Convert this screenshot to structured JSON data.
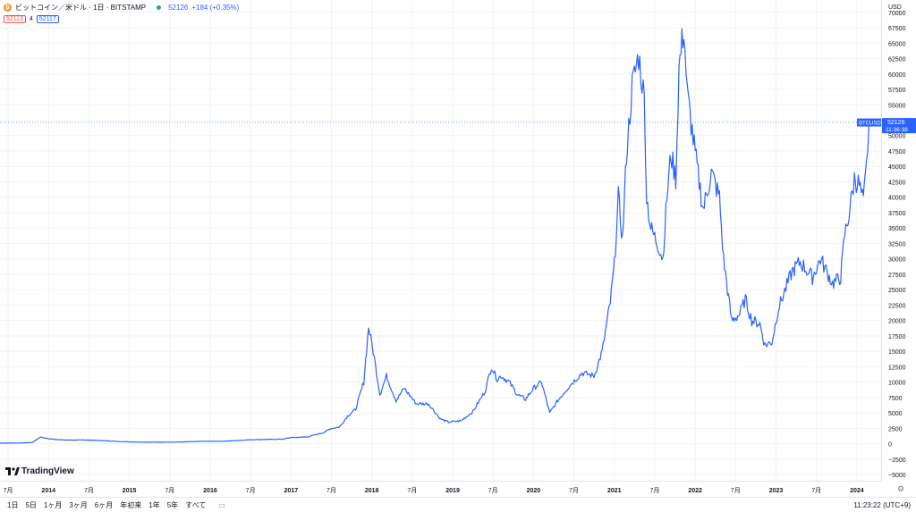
{
  "header": {
    "symbol_title": "ビットコイン／米ドル · 1日 · BITSTAMP",
    "last": "52126",
    "change": "+184 (+0.35%)",
    "bid": "52113",
    "spread": "4",
    "ask": "52117"
  },
  "price_axis": {
    "currency": "USD",
    "tag_symbol": "BTCUSD",
    "tag_price": "52126",
    "tag_time": "11:36:38",
    "ticks": [
      "70000",
      "67500",
      "65000",
      "62500",
      "60000",
      "57500",
      "55000",
      "52500",
      "50000",
      "47500",
      "45000",
      "42500",
      "40000",
      "37500",
      "35000",
      "32500",
      "30000",
      "27500",
      "25000",
      "22500",
      "20000",
      "17500",
      "15000",
      "12500",
      "10000",
      "7500",
      "5000",
      "2500",
      "0",
      "−2500",
      "−5000"
    ]
  },
  "time_axis": {
    "labels": [
      "7月",
      "2014",
      "7月",
      "2015",
      "7月",
      "2016",
      "7月",
      "2017",
      "7月",
      "2018",
      "7月",
      "2019",
      "7月",
      "2020",
      "7月",
      "2021",
      "7月",
      "2022",
      "7月",
      "2023",
      "7月",
      "2024"
    ]
  },
  "bottom_bar": {
    "ranges": [
      "1日",
      "5日",
      "1ヶ月",
      "3ヶ月",
      "6ヶ月",
      "年初来",
      "1年",
      "5年",
      "すべて"
    ],
    "clock": "11:23:22 (UTC+9)"
  },
  "logo_text": "TradingView",
  "colors": {
    "line": "#2962ff",
    "grid": "#f0f3fa",
    "axis_text": "#131722"
  },
  "chart_data": {
    "type": "line",
    "ylim": [
      -6000,
      72000
    ],
    "xlim": [
      2013.4,
      2024.3
    ],
    "grid": true,
    "series": [
      {
        "points": [
          [
            2013.4,
            100
          ],
          [
            2013.6,
            110
          ],
          [
            2013.8,
            200
          ],
          [
            2013.9,
            1100
          ],
          [
            2014.0,
            800
          ],
          [
            2014.2,
            600
          ],
          [
            2014.5,
            600
          ],
          [
            2014.9,
            350
          ],
          [
            2015.2,
            250
          ],
          [
            2015.6,
            270
          ],
          [
            2015.9,
            400
          ],
          [
            2016.2,
            420
          ],
          [
            2016.5,
            650
          ],
          [
            2016.9,
            750
          ],
          [
            2017.0,
            1000
          ],
          [
            2017.2,
            1100
          ],
          [
            2017.4,
            1800
          ],
          [
            2017.5,
            2500
          ],
          [
            2017.6,
            2700
          ],
          [
            2017.7,
            4500
          ],
          [
            2017.8,
            5600
          ],
          [
            2017.9,
            10000
          ],
          [
            2017.96,
            19000
          ],
          [
            2018.03,
            14000
          ],
          [
            2018.1,
            8000
          ],
          [
            2018.18,
            11000
          ],
          [
            2018.3,
            7000
          ],
          [
            2018.4,
            9000
          ],
          [
            2018.55,
            6500
          ],
          [
            2018.7,
            6500
          ],
          [
            2018.85,
            4000
          ],
          [
            2018.95,
            3500
          ],
          [
            2019.1,
            3700
          ],
          [
            2019.25,
            5200
          ],
          [
            2019.4,
            8500
          ],
          [
            2019.48,
            12500
          ],
          [
            2019.55,
            10500
          ],
          [
            2019.6,
            11000
          ],
          [
            2019.7,
            10000
          ],
          [
            2019.8,
            8000
          ],
          [
            2019.9,
            7200
          ],
          [
            2020.0,
            9000
          ],
          [
            2020.1,
            10000
          ],
          [
            2020.2,
            5000
          ],
          [
            2020.3,
            7000
          ],
          [
            2020.45,
            9500
          ],
          [
            2020.6,
            11500
          ],
          [
            2020.75,
            11000
          ],
          [
            2020.85,
            15000
          ],
          [
            2020.95,
            23000
          ],
          [
            2021.0,
            29000
          ],
          [
            2021.05,
            40000
          ],
          [
            2021.1,
            33000
          ],
          [
            2021.15,
            47000
          ],
          [
            2021.22,
            58000
          ],
          [
            2021.3,
            63000
          ],
          [
            2021.37,
            56000
          ],
          [
            2021.4,
            40000
          ],
          [
            2021.45,
            35000
          ],
          [
            2021.55,
            32000
          ],
          [
            2021.6,
            30000
          ],
          [
            2021.65,
            40000
          ],
          [
            2021.7,
            47000
          ],
          [
            2021.76,
            43000
          ],
          [
            2021.8,
            61000
          ],
          [
            2021.86,
            67500
          ],
          [
            2021.9,
            57000
          ],
          [
            2022.0,
            47000
          ],
          [
            2022.1,
            38000
          ],
          [
            2022.2,
            44000
          ],
          [
            2022.3,
            40000
          ],
          [
            2022.35,
            30000
          ],
          [
            2022.45,
            20000
          ],
          [
            2022.55,
            21000
          ],
          [
            2022.62,
            23500
          ],
          [
            2022.7,
            20000
          ],
          [
            2022.8,
            19500
          ],
          [
            2022.86,
            16000
          ],
          [
            2022.95,
            16500
          ],
          [
            2023.03,
            22000
          ],
          [
            2023.2,
            28000
          ],
          [
            2023.3,
            29500
          ],
          [
            2023.45,
            27000
          ],
          [
            2023.55,
            30000
          ],
          [
            2023.7,
            26000
          ],
          [
            2023.8,
            27000
          ],
          [
            2023.85,
            34000
          ],
          [
            2023.9,
            37000
          ],
          [
            2023.97,
            43000
          ],
          [
            2024.03,
            42000
          ],
          [
            2024.08,
            39000
          ],
          [
            2024.12,
            45000
          ],
          [
            2024.15,
            52126
          ]
        ]
      }
    ]
  }
}
